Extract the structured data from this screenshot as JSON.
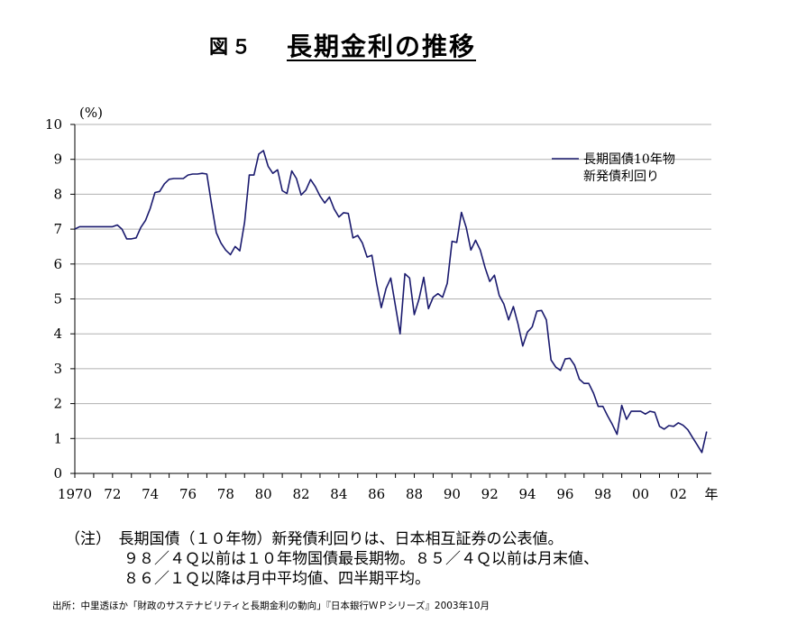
{
  "header": {
    "figure_number": "図５",
    "title": "長期金利の推移"
  },
  "notes": {
    "line1": "（注）　長期国債（１０年物）新発債利回りは、日本相互証券の公表値。",
    "line2": "９８／４Ｑ以前は１０年物国債最長期物。８５／４Ｑ以前は月末値、",
    "line3": "８６／１Ｑ以降は月中平均値、四半期平均。"
  },
  "source": "出所：中里透ほか「財政のサステナビリティと長期金利の動向」『日本銀行ＷＰシリーズ』2003年10月",
  "colors": {
    "series": "#1a1a6e",
    "grid": "#b0b0b0",
    "axis": "#000000"
  },
  "chart_data": {
    "type": "line",
    "ylabel": "(%)",
    "xlabel": "年",
    "ylim": [
      0,
      10
    ],
    "xlim": [
      1970,
      2003.75
    ],
    "yticks": [
      0,
      1,
      2,
      3,
      4,
      5,
      6,
      7,
      8,
      9,
      10
    ],
    "xticks": [
      1970,
      1972,
      1974,
      1976,
      1978,
      1980,
      1982,
      1984,
      1986,
      1988,
      1990,
      1992,
      1994,
      1996,
      1998,
      2000,
      2002
    ],
    "xtick_labels": [
      "1970",
      "72",
      "74",
      "76",
      "78",
      "80",
      "82",
      "84",
      "86",
      "88",
      "90",
      "92",
      "94",
      "96",
      "98",
      "00",
      "02"
    ],
    "grid": "horizontal",
    "legend_position": "top-right",
    "series": [
      {
        "name": "長期国債10年物\n新発債利回り",
        "x": [
          1970.0,
          1970.25,
          1971.0,
          1972.0,
          1972.25,
          1972.5,
          1972.75,
          1973.0,
          1973.25,
          1973.5,
          1973.75,
          1974.0,
          1974.25,
          1974.5,
          1974.75,
          1975.0,
          1975.25,
          1975.5,
          1975.75,
          1976.0,
          1976.25,
          1976.5,
          1976.75,
          1977.0,
          1977.25,
          1977.5,
          1977.75,
          1978.0,
          1978.25,
          1978.5,
          1978.75,
          1979.0,
          1979.25,
          1979.5,
          1979.75,
          1980.0,
          1980.25,
          1980.5,
          1980.75,
          1981.0,
          1981.25,
          1981.5,
          1981.75,
          1982.0,
          1982.25,
          1982.5,
          1982.75,
          1983.0,
          1983.25,
          1983.5,
          1983.75,
          1984.0,
          1984.25,
          1984.5,
          1984.75,
          1985.0,
          1985.25,
          1985.5,
          1985.75,
          1986.0,
          1986.25,
          1986.5,
          1986.75,
          1987.0,
          1987.25,
          1987.5,
          1987.75,
          1988.0,
          1988.25,
          1988.5,
          1988.75,
          1989.0,
          1989.25,
          1989.5,
          1989.75,
          1990.0,
          1990.25,
          1990.5,
          1990.75,
          1991.0,
          1991.25,
          1991.5,
          1991.75,
          1992.0,
          1992.25,
          1992.5,
          1992.75,
          1993.0,
          1993.25,
          1993.5,
          1993.75,
          1994.0,
          1994.25,
          1994.5,
          1994.75,
          1995.0,
          1995.25,
          1995.5,
          1995.75,
          1996.0,
          1996.25,
          1996.5,
          1996.75,
          1997.0,
          1997.25,
          1997.5,
          1997.75,
          1998.0,
          1998.25,
          1998.5,
          1998.75,
          1999.0,
          1999.25,
          1999.5,
          1999.75,
          2000.0,
          2000.25,
          2000.5,
          2000.75,
          2001.0,
          2001.25,
          2001.5,
          2001.75,
          2002.0,
          2002.25,
          2002.5,
          2002.75,
          2003.0,
          2003.25,
          2003.5
        ],
        "values": [
          7.0,
          7.07,
          7.07,
          7.07,
          7.12,
          7.0,
          6.72,
          6.72,
          6.75,
          7.05,
          7.25,
          7.6,
          8.05,
          8.08,
          8.3,
          8.43,
          8.45,
          8.45,
          8.45,
          8.55,
          8.58,
          8.58,
          8.6,
          8.58,
          7.7,
          6.9,
          6.6,
          6.4,
          6.27,
          6.5,
          6.38,
          7.2,
          8.55,
          8.55,
          9.15,
          9.25,
          8.8,
          8.6,
          8.7,
          8.1,
          8.02,
          8.67,
          8.45,
          7.98,
          8.12,
          8.42,
          8.22,
          7.95,
          7.75,
          7.92,
          7.58,
          7.35,
          7.47,
          7.45,
          6.75,
          6.82,
          6.6,
          6.2,
          6.25,
          5.45,
          4.75,
          5.3,
          5.6,
          4.8,
          4.0,
          5.72,
          5.6,
          4.55,
          5.0,
          5.62,
          4.72,
          5.05,
          5.15,
          5.05,
          5.45,
          6.65,
          6.62,
          7.48,
          7.05,
          6.4,
          6.68,
          6.4,
          5.9,
          5.5,
          5.68,
          5.1,
          4.85,
          4.4,
          4.78,
          4.28,
          3.65,
          4.05,
          4.2,
          4.65,
          4.67,
          4.4,
          3.25,
          3.05,
          2.95,
          3.28,
          3.3,
          3.1,
          2.7,
          2.58,
          2.58,
          2.3,
          1.92,
          1.92,
          1.65,
          1.4,
          1.12,
          1.95,
          1.55,
          1.78,
          1.78,
          1.78,
          1.7,
          1.78,
          1.75,
          1.35,
          1.27,
          1.37,
          1.35,
          1.45,
          1.38,
          1.25,
          1.03,
          0.82,
          0.6,
          1.2
        ]
      }
    ]
  }
}
